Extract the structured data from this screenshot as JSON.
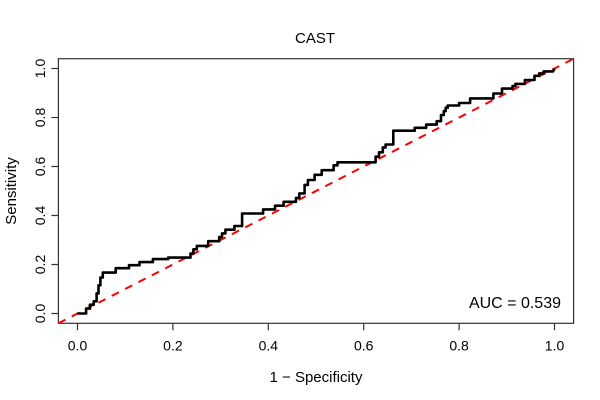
{
  "chart_data": {
    "type": "line",
    "subtype": "roc-curve",
    "title": "CAST",
    "xlabel": "1 − Specificity",
    "ylabel": "Sensitivity",
    "annotation": "AUC = 0.539",
    "auc_value": 0.539,
    "xlim": [
      -0.04,
      1.04
    ],
    "ylim": [
      -0.04,
      1.04
    ],
    "x_tick_values": [
      0.0,
      0.2,
      0.4,
      0.6,
      0.8,
      1.0
    ],
    "x_tick_labels": [
      "0.0",
      "0.2",
      "0.4",
      "0.6",
      "0.8",
      "1.0"
    ],
    "y_tick_values": [
      0.0,
      0.2,
      0.4,
      0.6,
      0.8,
      1.0
    ],
    "y_tick_labels": [
      "0.0",
      "0.2",
      "0.4",
      "0.6",
      "0.8",
      "1.0"
    ],
    "grid": false,
    "colors": {
      "curve": "#000000",
      "reference_line": "#ff0000",
      "box": "#333333",
      "text": "#000000"
    },
    "reference_line": {
      "name": "chance diagonal",
      "style": "dashed",
      "from": [
        0,
        0
      ],
      "to": [
        1,
        1
      ]
    },
    "series": [
      {
        "name": "ROC curve (CAST)",
        "points": [
          [
            0,
            0
          ],
          [
            0.018,
            0
          ],
          [
            0.018,
            0.02
          ],
          [
            0.026,
            0.02
          ],
          [
            0.026,
            0.036
          ],
          [
            0.034,
            0.036
          ],
          [
            0.034,
            0.05
          ],
          [
            0.04,
            0.05
          ],
          [
            0.04,
            0.082
          ],
          [
            0.044,
            0.082
          ],
          [
            0.044,
            0.115
          ],
          [
            0.048,
            0.115
          ],
          [
            0.048,
            0.147
          ],
          [
            0.053,
            0.147
          ],
          [
            0.053,
            0.167
          ],
          [
            0.08,
            0.167
          ],
          [
            0.08,
            0.185
          ],
          [
            0.108,
            0.185
          ],
          [
            0.108,
            0.197
          ],
          [
            0.13,
            0.197
          ],
          [
            0.13,
            0.21
          ],
          [
            0.158,
            0.21
          ],
          [
            0.158,
            0.222
          ],
          [
            0.19,
            0.222
          ],
          [
            0.19,
            0.228
          ],
          [
            0.237,
            0.228
          ],
          [
            0.237,
            0.245
          ],
          [
            0.243,
            0.245
          ],
          [
            0.243,
            0.262
          ],
          [
            0.25,
            0.262
          ],
          [
            0.25,
            0.276
          ],
          [
            0.274,
            0.276
          ],
          [
            0.274,
            0.295
          ],
          [
            0.297,
            0.295
          ],
          [
            0.297,
            0.312
          ],
          [
            0.303,
            0.312
          ],
          [
            0.303,
            0.327
          ],
          [
            0.31,
            0.327
          ],
          [
            0.31,
            0.342
          ],
          [
            0.329,
            0.342
          ],
          [
            0.329,
            0.357
          ],
          [
            0.345,
            0.357
          ],
          [
            0.345,
            0.408
          ],
          [
            0.389,
            0.408
          ],
          [
            0.389,
            0.425
          ],
          [
            0.414,
            0.425
          ],
          [
            0.414,
            0.44
          ],
          [
            0.432,
            0.44
          ],
          [
            0.432,
            0.456
          ],
          [
            0.458,
            0.456
          ],
          [
            0.458,
            0.472
          ],
          [
            0.465,
            0.472
          ],
          [
            0.465,
            0.49
          ],
          [
            0.476,
            0.49
          ],
          [
            0.476,
            0.525
          ],
          [
            0.483,
            0.525
          ],
          [
            0.483,
            0.545
          ],
          [
            0.497,
            0.545
          ],
          [
            0.497,
            0.566
          ],
          [
            0.512,
            0.566
          ],
          [
            0.512,
            0.585
          ],
          [
            0.537,
            0.585
          ],
          [
            0.537,
            0.605
          ],
          [
            0.545,
            0.605
          ],
          [
            0.545,
            0.617
          ],
          [
            0.625,
            0.617
          ],
          [
            0.625,
            0.64
          ],
          [
            0.632,
            0.64
          ],
          [
            0.632,
            0.658
          ],
          [
            0.64,
            0.658
          ],
          [
            0.64,
            0.678
          ],
          [
            0.646,
            0.678
          ],
          [
            0.646,
            0.69
          ],
          [
            0.662,
            0.69
          ],
          [
            0.662,
            0.746
          ],
          [
            0.707,
            0.746
          ],
          [
            0.707,
            0.758
          ],
          [
            0.731,
            0.758
          ],
          [
            0.731,
            0.771
          ],
          [
            0.753,
            0.771
          ],
          [
            0.753,
            0.785
          ],
          [
            0.762,
            0.785
          ],
          [
            0.762,
            0.81
          ],
          [
            0.768,
            0.81
          ],
          [
            0.768,
            0.826
          ],
          [
            0.772,
            0.826
          ],
          [
            0.772,
            0.84
          ],
          [
            0.776,
            0.84
          ],
          [
            0.776,
            0.849
          ],
          [
            0.8,
            0.849
          ],
          [
            0.8,
            0.859
          ],
          [
            0.823,
            0.859
          ],
          [
            0.823,
            0.878
          ],
          [
            0.872,
            0.878
          ],
          [
            0.872,
            0.898
          ],
          [
            0.89,
            0.898
          ],
          [
            0.89,
            0.918
          ],
          [
            0.912,
            0.918
          ],
          [
            0.912,
            0.928
          ],
          [
            0.918,
            0.928
          ],
          [
            0.918,
            0.937
          ],
          [
            0.938,
            0.937
          ],
          [
            0.938,
            0.953
          ],
          [
            0.958,
            0.953
          ],
          [
            0.958,
            0.97
          ],
          [
            0.968,
            0.97
          ],
          [
            0.968,
            0.98
          ],
          [
            0.977,
            0.98
          ],
          [
            0.977,
            0.988
          ],
          [
            0.997,
            0.988
          ],
          [
            1,
            1
          ]
        ]
      }
    ]
  }
}
